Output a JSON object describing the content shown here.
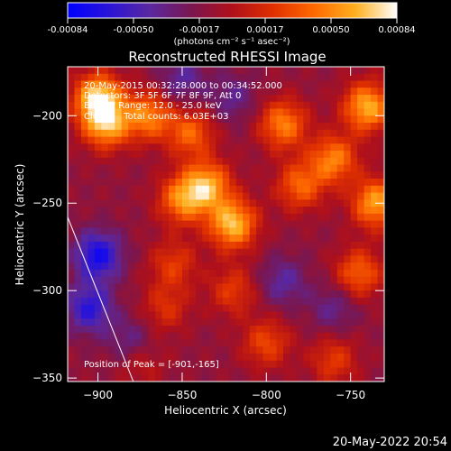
{
  "colorbar": {
    "tick_labels": [
      "-0.00084",
      "-0.00050",
      "-0.00017",
      "0.00017",
      "0.00050",
      "0.00084"
    ],
    "units_label": "(photons cm⁻² s⁻¹ asec⁻²)",
    "range": [
      -0.00084,
      0.00084
    ],
    "colormap": [
      "#0000ff",
      "#2a14d8",
      "#5a28a0",
      "#7a1650",
      "#b0101a",
      "#e03000",
      "#ff6a00",
      "#ffb020",
      "#ffffff"
    ]
  },
  "info": {
    "time_range": "20-May-2015 00:32:28.000 to 00:34:52.000",
    "detectors": "Detectors: 3F 5F 6F 7F 8F 9F, Att 0",
    "energy_range": "Energy Range: 12.0 - 25.0 keV",
    "algorithm": "Clean     Total counts: 6.03E+03",
    "peak": "Position of Peak = [-901,-165]"
  },
  "footer": {
    "timestamp": "20-May-2022 20:54"
  },
  "chart_data": {
    "type": "heatmap",
    "title": "Reconstructed RHESSI Image",
    "xlabel": "Heliocentric X (arcsec)",
    "ylabel": "Heliocentric Y (arcsec)",
    "xlim": [
      -918,
      -730
    ],
    "ylim": [
      -352,
      -172
    ],
    "x_ticks": [
      -900,
      -850,
      -800,
      -750
    ],
    "x_tick_labels": [
      "−900",
      "−850",
      "−800",
      "−750"
    ],
    "y_ticks": [
      -200,
      -250,
      -300,
      -350
    ],
    "y_tick_labels": [
      "−200",
      "−250",
      "−300",
      "−350"
    ],
    "peak_position": [
      -901,
      -165
    ],
    "limb_line": {
      "x": [
        -918,
        -879
      ],
      "y": [
        -258,
        -352
      ]
    },
    "bright_regions": [
      {
        "x": -900,
        "y": -190,
        "value": 0.00084
      },
      {
        "x": -895,
        "y": -205,
        "value": 0.0007
      },
      {
        "x": -870,
        "y": -200,
        "value": 0.0006
      },
      {
        "x": -845,
        "y": -210,
        "value": 0.0005
      },
      {
        "x": -835,
        "y": -240,
        "value": 0.0007
      },
      {
        "x": -820,
        "y": -262,
        "value": 0.0008
      },
      {
        "x": -850,
        "y": -248,
        "value": 0.0006
      },
      {
        "x": -790,
        "y": -205,
        "value": 0.0006
      },
      {
        "x": -780,
        "y": -240,
        "value": 0.0005
      },
      {
        "x": -740,
        "y": -195,
        "value": 0.00075
      },
      {
        "x": -760,
        "y": -225,
        "value": 0.0006
      },
      {
        "x": -735,
        "y": -250,
        "value": 0.0007
      },
      {
        "x": -745,
        "y": -290,
        "value": 0.0005
      },
      {
        "x": -800,
        "y": -330,
        "value": 0.0004
      },
      {
        "x": -820,
        "y": -300,
        "value": 0.00035
      },
      {
        "x": -860,
        "y": -310,
        "value": 0.0003
      },
      {
        "x": -855,
        "y": -285,
        "value": 0.00035
      },
      {
        "x": -760,
        "y": -340,
        "value": 0.00035
      },
      {
        "x": -875,
        "y": -340,
        "value": 0.00025
      }
    ],
    "dark_regions": [
      {
        "x": -900,
        "y": -280,
        "value": -0.0006
      },
      {
        "x": -905,
        "y": -310,
        "value": -0.0005
      },
      {
        "x": -850,
        "y": -180,
        "value": -0.0003
      },
      {
        "x": -820,
        "y": -190,
        "value": -0.00025
      },
      {
        "x": -790,
        "y": -295,
        "value": -0.0003
      },
      {
        "x": -760,
        "y": -310,
        "value": -0.00025
      },
      {
        "x": -880,
        "y": -330,
        "value": -0.0003
      }
    ]
  }
}
